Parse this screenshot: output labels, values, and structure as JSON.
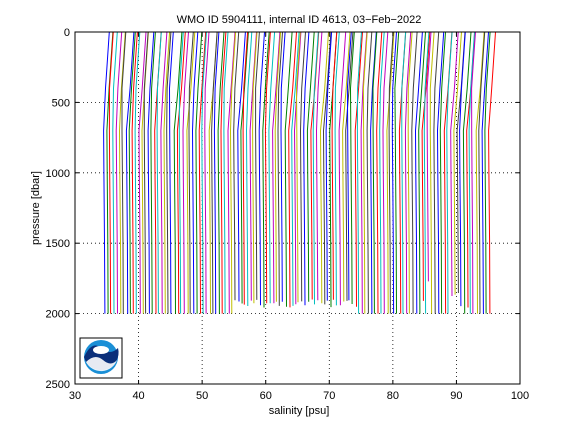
{
  "chart_data": {
    "type": "line",
    "title": "WMO ID 5904111, internal ID 4613, 03−Feb−2022",
    "xlabel": "salinity [psu]",
    "ylabel": "pressure [dbar]",
    "xlim": [
      30,
      100
    ],
    "ylim": [
      0,
      2500
    ],
    "y_reversed": true,
    "grid": "dotted",
    "x_ticks": [
      30,
      40,
      50,
      60,
      70,
      80,
      90,
      100
    ],
    "y_ticks": [
      0,
      500,
      1000,
      1500,
      2000,
      2500
    ],
    "profile_offset_psu": 0.5,
    "profile_count": 122,
    "series_colors": [
      "#0000ff",
      "#008000",
      "#ff0000",
      "#00bfbf",
      "#bf00bf",
      "#bfbf00",
      "#404040"
    ],
    "base_profile": [
      {
        "pressure": 0,
        "salinity": 35.4
      },
      {
        "pressure": 200,
        "salinity": 35.1
      },
      {
        "pressure": 400,
        "salinity": 34.8
      },
      {
        "pressure": 700,
        "salinity": 34.5
      },
      {
        "pressure": 1000,
        "salinity": 34.55
      },
      {
        "pressure": 1500,
        "salinity": 34.65
      },
      {
        "pressure": 2000,
        "salinity": 34.7
      }
    ],
    "logo": "noaa-logo"
  }
}
